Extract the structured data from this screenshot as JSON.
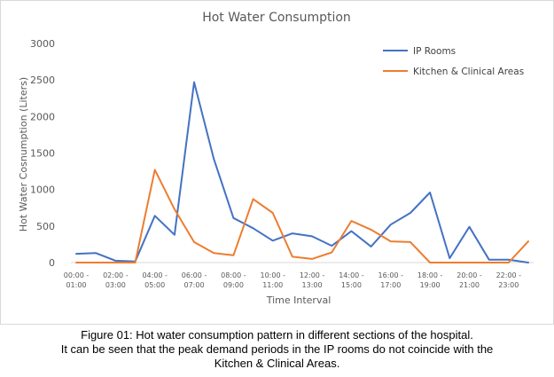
{
  "chart_data": {
    "type": "line",
    "title": "Hot Water Consumption",
    "xlabel": "Time Interval",
    "ylabel": "Hot Water Cosnumption (Liters)",
    "ylim": [
      0,
      3000
    ],
    "yticks": [
      0,
      500,
      1000,
      1500,
      2000,
      2500,
      3000
    ],
    "grid": false,
    "legend_position": "top-right",
    "categories": [
      "00:00 - 01:00",
      "01:00 - 02:00",
      "02:00 - 03:00",
      "03:00 - 04:00",
      "04:00 - 05:00",
      "05:00 - 06:00",
      "06:00 - 07:00",
      "07:00 - 08:00",
      "08:00 - 09:00",
      "09:00 - 10:00",
      "10:00 - 11:00",
      "11:00 - 12:00",
      "12:00 - 13:00",
      "13:00 - 14:00",
      "14:00 - 15:00",
      "15:00 - 16:00",
      "16:00 - 17:00",
      "17:00 - 18:00",
      "18:00 - 19:00",
      "19:00 - 20:00",
      "20:00 - 21:00",
      "21:00 - 22:00",
      "22:00 - 23:00",
      "23:00 - 00:00"
    ],
    "tick_labels": [
      {
        "index": 0,
        "line1": "00:00 -",
        "line2": "01:00"
      },
      {
        "index": 2,
        "line1": "02:00 -",
        "line2": "03:00"
      },
      {
        "index": 4,
        "line1": "04:00 -",
        "line2": "05:00"
      },
      {
        "index": 6,
        "line1": "06:00 -",
        "line2": "07:00"
      },
      {
        "index": 8,
        "line1": "08:00 -",
        "line2": "09:00"
      },
      {
        "index": 10,
        "line1": "10:00 -",
        "line2": "11:00"
      },
      {
        "index": 12,
        "line1": "12:00 -",
        "line2": "13:00"
      },
      {
        "index": 14,
        "line1": "14:00 -",
        "line2": "15:00"
      },
      {
        "index": 16,
        "line1": "16:00 -",
        "line2": "17:00"
      },
      {
        "index": 18,
        "line1": "18:00 -",
        "line2": "19:00"
      },
      {
        "index": 20,
        "line1": "20:00 -",
        "line2": "21:00"
      },
      {
        "index": 22,
        "line1": "22:00 -",
        "line2": "23:00"
      }
    ],
    "series": [
      {
        "name": "IP Rooms",
        "color": "#4472c4",
        "values": [
          120,
          130,
          25,
          15,
          640,
          380,
          2470,
          1420,
          610,
          470,
          300,
          400,
          360,
          230,
          430,
          220,
          520,
          680,
          960,
          60,
          490,
          40,
          40,
          0
        ]
      },
      {
        "name": "Kitchen & Clinical Areas",
        "color": "#ed7d31",
        "values": [
          0,
          0,
          0,
          0,
          1270,
          730,
          280,
          130,
          100,
          870,
          680,
          80,
          50,
          140,
          570,
          450,
          290,
          280,
          0,
          0,
          0,
          0,
          0,
          290
        ]
      }
    ]
  },
  "caption": {
    "line1": "Figure 01: Hot water consumption pattern in different sections of the hospital.",
    "line2": "It can be seen that the peak demand periods in the IP rooms do not coincide with the",
    "line3": "Kitchen & Clinical Areas."
  }
}
